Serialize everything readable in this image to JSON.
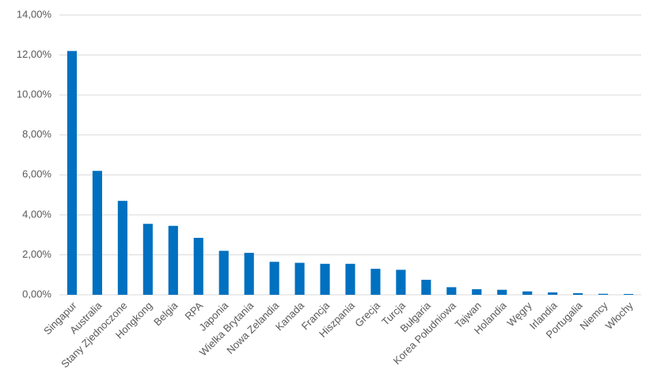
{
  "chart_data": {
    "type": "bar",
    "categories": [
      "Singapur",
      "Australia",
      "Stany Zjednoczone",
      "Hongkong",
      "Belgia",
      "RPA",
      "Japonia",
      "Wielka Brytania",
      "Nowa Zelandia",
      "Kanada",
      "Francja",
      "Hiszpania",
      "Grecja",
      "Turcja",
      "Bułgaria",
      "Korea Południowa",
      "Tajwan",
      "Holandia",
      "Węgry",
      "Irlandia",
      "Portugalia",
      "Niemcy",
      "Włochy"
    ],
    "values": [
      12.2,
      6.2,
      4.7,
      3.55,
      3.45,
      2.85,
      2.2,
      2.1,
      1.65,
      1.6,
      1.55,
      1.55,
      1.3,
      1.25,
      0.75,
      0.38,
      0.28,
      0.25,
      0.17,
      0.12,
      0.08,
      0.05,
      0.04
    ],
    "color": "#0070c0",
    "ylim": [
      0,
      14
    ],
    "yticks": [
      {
        "value": 0,
        "label": "0,00%"
      },
      {
        "value": 2,
        "label": "2,00%"
      },
      {
        "value": 4,
        "label": "4,00%"
      },
      {
        "value": 6,
        "label": "6,00%"
      },
      {
        "value": 8,
        "label": "8,00%"
      },
      {
        "value": 10,
        "label": "10,00%"
      },
      {
        "value": 12,
        "label": "12,00%"
      },
      {
        "value": 14,
        "label": "14,00%"
      }
    ],
    "grid": true
  }
}
